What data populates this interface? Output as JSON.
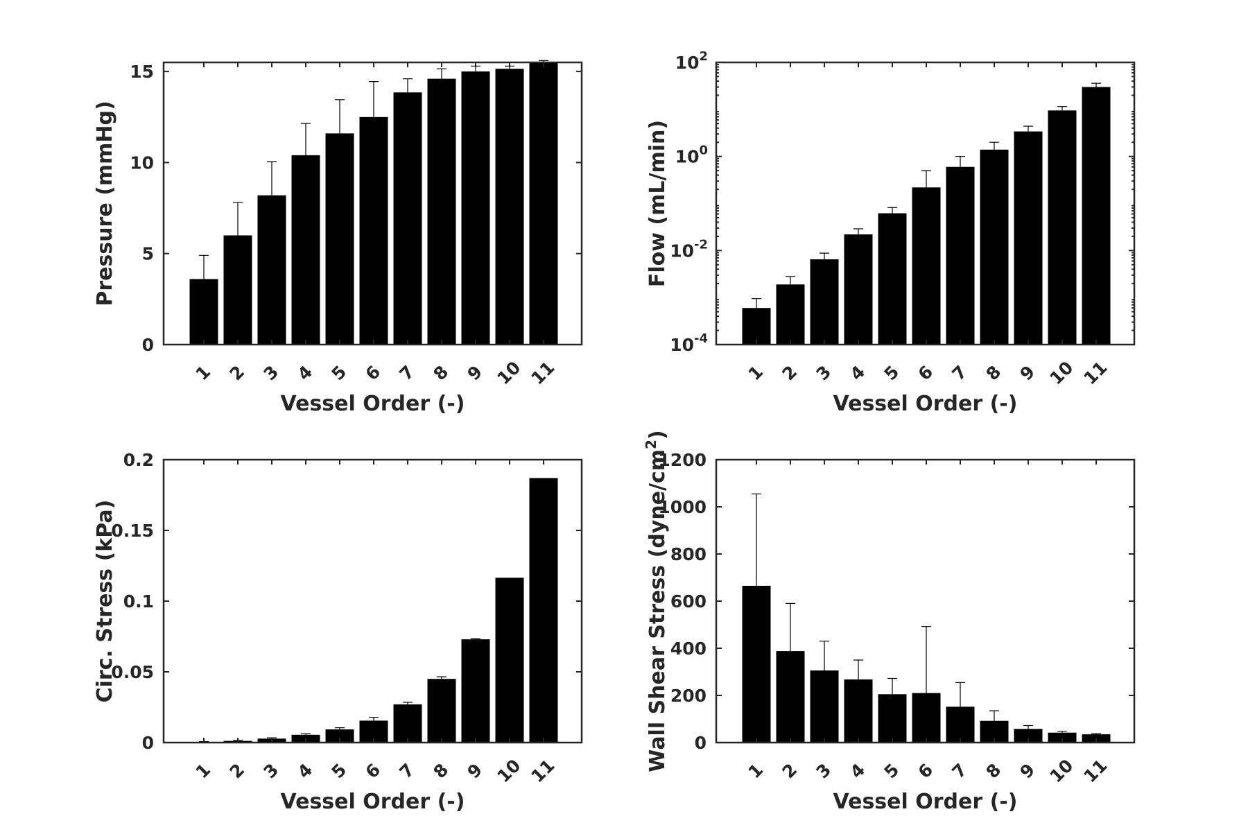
{
  "chart_data": [
    {
      "id": "pressure",
      "type": "bar",
      "scale": "linear",
      "categories": [
        "1",
        "2",
        "3",
        "4",
        "5",
        "6",
        "7",
        "8",
        "9",
        "10",
        "11"
      ],
      "values": [
        3.6,
        6.0,
        8.2,
        10.4,
        11.6,
        12.5,
        13.85,
        14.6,
        15.0,
        15.15,
        15.5
      ],
      "error_upper": [
        4.9,
        7.8,
        10.05,
        12.15,
        13.45,
        14.45,
        14.6,
        15.15,
        15.3,
        15.3,
        15.6
      ],
      "ylim": [
        0,
        15.5
      ],
      "yticks": [
        0,
        5,
        10,
        15
      ],
      "ytick_labels": [
        "0",
        "5",
        "10",
        "15"
      ],
      "ylabel": "Pressure (mmHg)",
      "xlabel": "Vessel Order (-)"
    },
    {
      "id": "flow",
      "type": "bar",
      "scale": "log",
      "categories": [
        "1",
        "2",
        "3",
        "4",
        "5",
        "6",
        "7",
        "8",
        "9",
        "10",
        "11"
      ],
      "values": [
        0.0006,
        0.0019,
        0.0065,
        0.022,
        0.062,
        0.22,
        0.6,
        1.4,
        3.4,
        9.5,
        30
      ],
      "error_upper": [
        0.00095,
        0.0028,
        0.0088,
        0.029,
        0.082,
        0.5,
        1.0,
        2.0,
        4.4,
        11.5,
        36
      ],
      "ylim": [
        0.0001,
        100
      ],
      "ytick_exponents": [
        "-4",
        "-2",
        "0",
        "2"
      ],
      "ytick_base": "10",
      "ylabel": "Flow (mL/min)",
      "xlabel": "Vessel Order (-)"
    },
    {
      "id": "circ-stress",
      "type": "bar",
      "scale": "linear",
      "categories": [
        "1",
        "2",
        "3",
        "4",
        "5",
        "6",
        "7",
        "8",
        "9",
        "10",
        "11"
      ],
      "values": [
        0.0005,
        0.0012,
        0.0028,
        0.0055,
        0.0093,
        0.0155,
        0.027,
        0.045,
        0.073,
        0.1165,
        0.187
      ],
      "error_upper": [
        0.0007,
        0.0016,
        0.0034,
        0.0062,
        0.0105,
        0.0178,
        0.0285,
        0.0465,
        0.0735,
        0.1165,
        0.187
      ],
      "ylim": [
        0,
        0.2
      ],
      "yticks": [
        0,
        0.05,
        0.1,
        0.15,
        0.2
      ],
      "ytick_labels": [
        "0",
        "0.05",
        "0.1",
        "0.15",
        "0.2"
      ],
      "ylabel": "Circ. Stress (kPa)",
      "xlabel": "Vessel Order (-)"
    },
    {
      "id": "wall-shear-stress",
      "type": "bar",
      "scale": "linear",
      "categories": [
        "1",
        "2",
        "3",
        "4",
        "5",
        "6",
        "7",
        "8",
        "9",
        "10",
        "11"
      ],
      "values": [
        665,
        388,
        306,
        268,
        205,
        210,
        152,
        92,
        58,
        42,
        35
      ],
      "error_upper": [
        1055,
        590,
        430,
        350,
        272,
        492,
        255,
        135,
        72,
        48,
        38
      ],
      "ylim": [
        0,
        1200
      ],
      "yticks": [
        0,
        200,
        400,
        600,
        800,
        1000,
        1200
      ],
      "ytick_labels": [
        "0",
        "200",
        "400",
        "600",
        "800",
        "1000",
        "1200"
      ],
      "ylabel": "Wall Shear Stress (dyne/cm",
      "ylabel_superscript": "2",
      "ylabel_suffix": ")",
      "xlabel": "Vessel Order (-)"
    }
  ]
}
